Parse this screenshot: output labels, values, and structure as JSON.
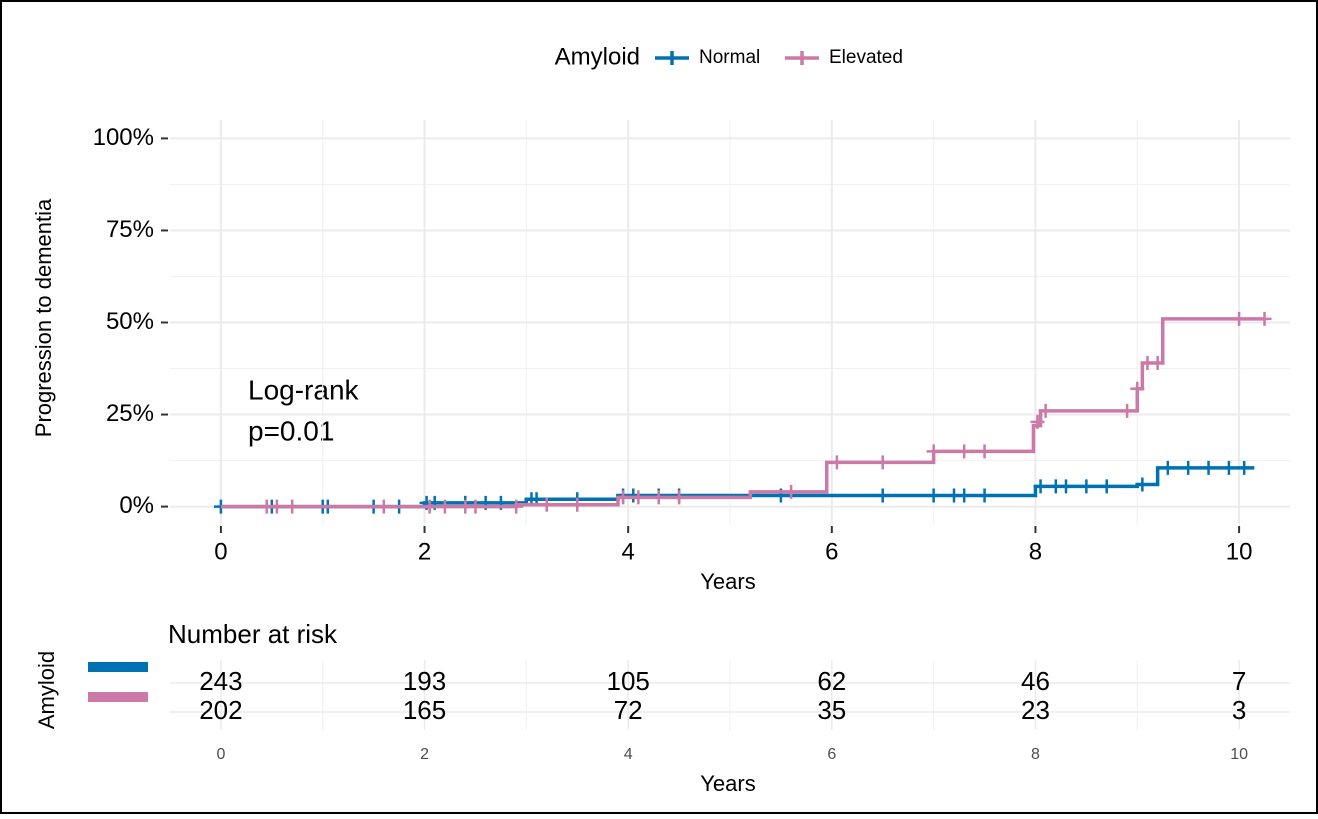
{
  "chart_data": {
    "type": "survival",
    "legend_title": "Amyloid",
    "annotation": [
      "Log-rank",
      "p=0.01"
    ],
    "xlabel": "Years",
    "ylabel": "Progression to dementia",
    "xlim": [
      -0.5,
      10.5
    ],
    "ylim": [
      -5,
      105
    ],
    "xticks": [
      0,
      2,
      4,
      6,
      8,
      10
    ],
    "x_minor_ticks": [
      1,
      3,
      5,
      7,
      9
    ],
    "yticks": [
      {
        "value": 0,
        "label": "0%"
      },
      {
        "value": 25,
        "label": "25%"
      },
      {
        "value": 50,
        "label": "50%"
      },
      {
        "value": 75,
        "label": "75%"
      },
      {
        "value": 100,
        "label": "100%"
      }
    ],
    "y_minor_ticks": [
      12.5,
      37.5,
      62.5,
      87.5
    ],
    "grid": true,
    "series": [
      {
        "name": "Normal",
        "color": "#0072B2",
        "x": [
          0,
          2,
          3,
          3.9,
          8,
          9,
          9.2,
          10.15
        ],
        "values": [
          0,
          1,
          2,
          3,
          5.5,
          6,
          10.5,
          10.5
        ],
        "censor_x": [
          0,
          0.5,
          1,
          1.05,
          1.5,
          1.75,
          2.02,
          2.1,
          2.4,
          2.6,
          2.75,
          3.05,
          3.1,
          3.5,
          3.95,
          4.05,
          4.3,
          4.5,
          5.5,
          6.5,
          7.0,
          7.2,
          7.3,
          7.5,
          8.05,
          8.2,
          8.3,
          8.5,
          8.7,
          9.05,
          9.3,
          9.5,
          9.7,
          9.9,
          10.05
        ],
        "censor_values": [
          0,
          0,
          0,
          0,
          0,
          0,
          1,
          1,
          1,
          1,
          1,
          2,
          2,
          2,
          3,
          3,
          3,
          3,
          3,
          3,
          3,
          3,
          3,
          3,
          5.5,
          5.5,
          5.5,
          5.5,
          5.5,
          6,
          10.5,
          10.5,
          10.5,
          10.5,
          10.5
        ]
      },
      {
        "name": "Elevated",
        "color": "#CC79A7",
        "x": [
          0,
          2.9,
          3.9,
          5.2,
          5.95,
          7,
          7.98,
          8.05,
          9,
          9.05,
          9.25,
          10.25
        ],
        "values": [
          0,
          0.5,
          2.5,
          4,
          12,
          15,
          22,
          26,
          32,
          39,
          51,
          51
        ],
        "censor_x": [
          0.45,
          0.55,
          0.7,
          1.6,
          2.05,
          2.2,
          2.4,
          2.5,
          2.9,
          3.2,
          3.5,
          3.95,
          4.1,
          4.3,
          4.5,
          5.6,
          6.05,
          6.5,
          7.0,
          7.3,
          7.5,
          8.02,
          8.1,
          8.9,
          9.0,
          9.1,
          9.2,
          10.0,
          10.25
        ],
        "censor_values": [
          0,
          0,
          0,
          0,
          0,
          0,
          0,
          0,
          0,
          0.5,
          0.5,
          2.5,
          2.5,
          2.5,
          2.5,
          4,
          12,
          12,
          15,
          15,
          15,
          23,
          26,
          26,
          32,
          39,
          39,
          51,
          51
        ]
      }
    ],
    "risk_table": {
      "title": "Number at risk",
      "ylabel": "Amyloid",
      "xlabel": "Years",
      "times": [
        0,
        2,
        4,
        6,
        8,
        10
      ],
      "rows": [
        {
          "color": "#0072B2",
          "values": [
            243,
            193,
            105,
            62,
            46,
            7
          ]
        },
        {
          "color": "#CC79A7",
          "values": [
            202,
            165,
            72,
            35,
            23,
            3
          ]
        }
      ]
    }
  }
}
